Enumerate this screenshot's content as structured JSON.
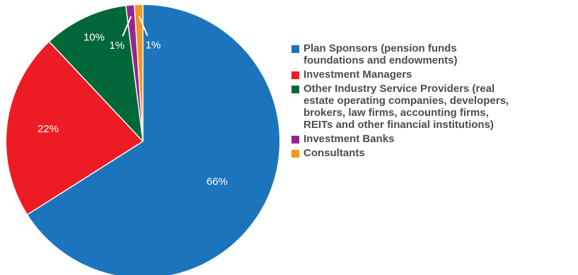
{
  "chart_data": {
    "type": "pie",
    "slices": [
      {
        "label": "Plan Sponsors (pension funds\nfoundations and endowments)",
        "value": 66,
        "display": "66%",
        "color": "#1c75bc"
      },
      {
        "label": "Investment Managers",
        "value": 22,
        "display": "22%",
        "color": "#ed1c24"
      },
      {
        "label": "Other Industry Service Providers (real\nestate operating companies, developers,\nbrokers, law firms, accounting firms,\nREITs and other financial institutions)",
        "value": 10,
        "display": "10%",
        "color": "#006838"
      },
      {
        "label": "Investment Banks",
        "value": 1,
        "display": "1%",
        "color": "#92278f"
      },
      {
        "label": "Consultants",
        "value": 1,
        "display": "1%",
        "color": "#f7941d"
      }
    ],
    "legend_position": "right"
  }
}
